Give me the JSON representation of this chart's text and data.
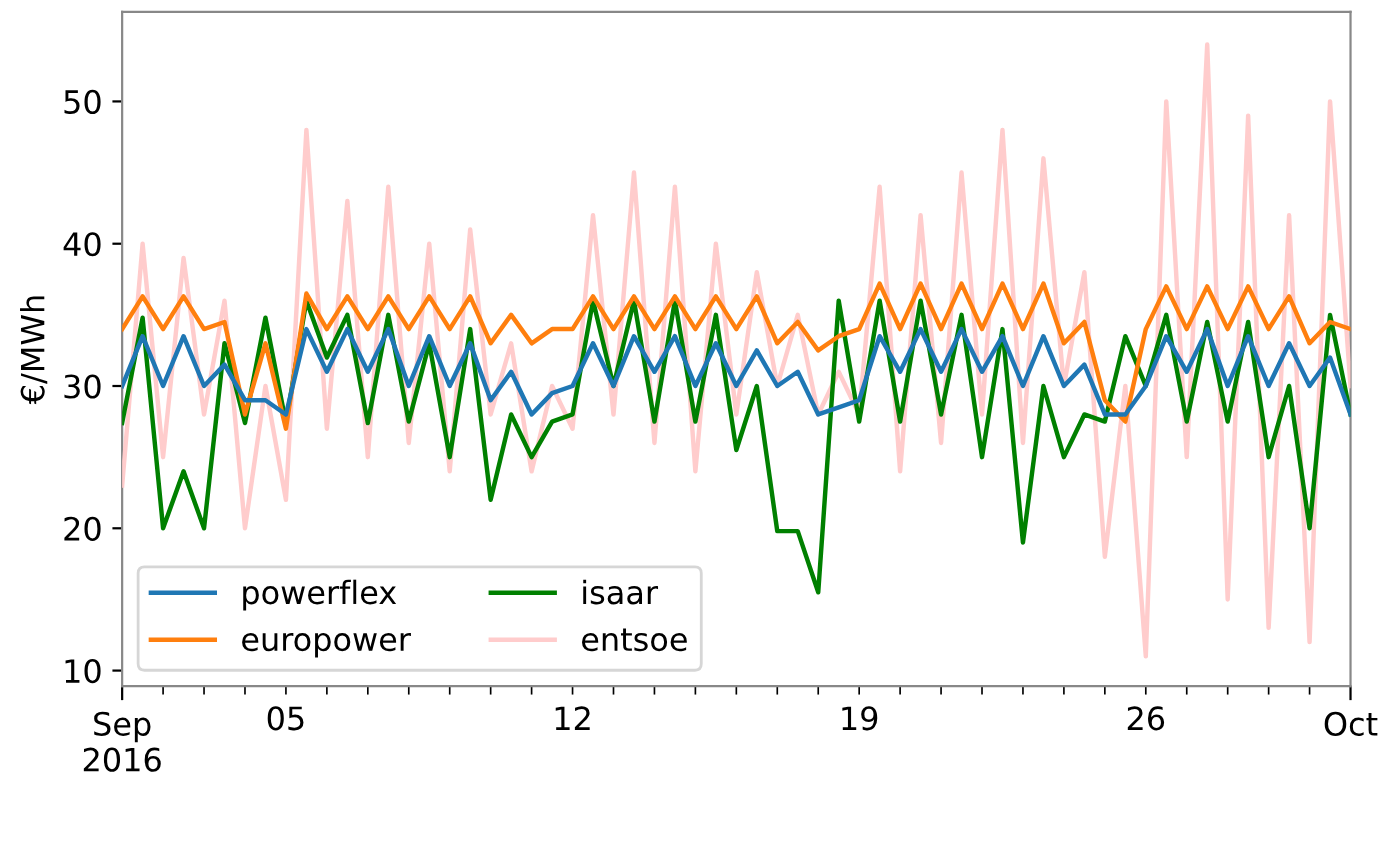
{
  "chart_data": {
    "type": "line",
    "ylabel": "€/MWh",
    "x": [
      "2016-09-01T00:00",
      "2016-09-01T12:00",
      "2016-09-02T00:00",
      "2016-09-02T12:00",
      "2016-09-03T00:00",
      "2016-09-03T12:00",
      "2016-09-04T00:00",
      "2016-09-04T12:00",
      "2016-09-05T00:00",
      "2016-09-05T12:00",
      "2016-09-06T00:00",
      "2016-09-06T12:00",
      "2016-09-07T00:00",
      "2016-09-07T12:00",
      "2016-09-08T00:00",
      "2016-09-08T12:00",
      "2016-09-09T00:00",
      "2016-09-09T12:00",
      "2016-09-10T00:00",
      "2016-09-10T12:00",
      "2016-09-11T00:00",
      "2016-09-11T12:00",
      "2016-09-12T00:00",
      "2016-09-12T12:00",
      "2016-09-13T00:00",
      "2016-09-13T12:00",
      "2016-09-14T00:00",
      "2016-09-14T12:00",
      "2016-09-15T00:00",
      "2016-09-15T12:00",
      "2016-09-16T00:00",
      "2016-09-16T12:00",
      "2016-09-17T00:00",
      "2016-09-17T12:00",
      "2016-09-18T00:00",
      "2016-09-18T12:00",
      "2016-09-19T00:00",
      "2016-09-19T12:00",
      "2016-09-20T00:00",
      "2016-09-20T12:00",
      "2016-09-21T00:00",
      "2016-09-21T12:00",
      "2016-09-22T00:00",
      "2016-09-22T12:00",
      "2016-09-23T00:00",
      "2016-09-23T12:00",
      "2016-09-24T00:00",
      "2016-09-24T12:00",
      "2016-09-25T00:00",
      "2016-09-25T12:00",
      "2016-09-26T00:00",
      "2016-09-26T12:00",
      "2016-09-27T00:00",
      "2016-09-27T12:00",
      "2016-09-28T00:00",
      "2016-09-28T12:00",
      "2016-09-29T00:00",
      "2016-09-29T12:00",
      "2016-09-30T00:00",
      "2016-09-30T12:00",
      "2016-10-01T00:00"
    ],
    "series": [
      {
        "name": "powerflex",
        "color": "#1f77b4",
        "values": [
          30,
          33.5,
          30,
          33.5,
          30,
          31.5,
          29,
          29,
          28,
          34,
          31,
          34,
          31,
          34,
          30,
          33.5,
          30,
          33,
          29,
          31,
          28,
          29.5,
          30,
          33,
          30,
          33.5,
          31,
          33.5,
          30,
          33,
          30,
          32.5,
          30,
          31,
          28,
          28.5,
          29,
          33.5,
          31,
          34,
          31,
          34,
          31,
          33.5,
          30,
          33.5,
          30,
          31.5,
          28,
          28,
          30,
          33.5,
          31,
          34,
          30,
          33.5,
          30,
          33,
          30,
          32,
          28
        ]
      },
      {
        "name": "europower",
        "color": "#ff7f0e",
        "values": [
          34,
          36.3,
          34,
          36.3,
          34,
          34.5,
          28,
          33,
          27,
          36.5,
          34,
          36.3,
          34,
          36.3,
          34,
          36.3,
          34,
          36.3,
          33,
          35,
          33,
          34,
          34,
          36.3,
          34,
          36.3,
          34,
          36.3,
          34,
          36.3,
          34,
          36.3,
          33,
          34.5,
          32.5,
          33.5,
          34,
          37.2,
          34,
          37.2,
          34,
          37.2,
          34,
          37.2,
          34,
          37.2,
          33,
          34.5,
          29,
          27.5,
          34,
          37,
          34,
          37,
          34,
          37,
          34,
          36.3,
          33,
          34.5,
          34
        ]
      },
      {
        "name": "isaar",
        "color": "#008000",
        "values": [
          27.4,
          34.8,
          20,
          24,
          20,
          33,
          27.4,
          34.8,
          27.4,
          36,
          32,
          35,
          27.4,
          35,
          27.5,
          33,
          25,
          34,
          22,
          28,
          25,
          27.5,
          28,
          36,
          30,
          36,
          27.5,
          36,
          27.5,
          35,
          25.5,
          30,
          19.8,
          19.8,
          15.5,
          36,
          27.5,
          36,
          27.5,
          36,
          28,
          35,
          25,
          34,
          19,
          30,
          25,
          28,
          27.5,
          33.5,
          30,
          35,
          27.5,
          34.5,
          27.5,
          34.5,
          25,
          30,
          20,
          35,
          28
        ]
      },
      {
        "name": "entsoe",
        "color": "#ffcccc",
        "values": [
          23,
          40,
          25,
          39,
          28,
          36,
          20,
          30,
          22,
          48,
          27,
          43,
          25,
          44,
          26,
          40,
          24,
          41,
          28,
          33,
          24,
          30,
          27,
          42,
          28,
          45,
          26,
          44,
          24,
          40,
          28,
          38,
          30,
          35,
          28,
          31,
          28,
          44,
          24,
          42,
          26,
          45,
          28,
          48,
          26,
          46,
          30,
          38,
          18,
          30,
          11,
          50,
          25,
          54,
          15,
          49,
          13,
          42,
          12,
          50,
          30
        ]
      }
    ],
    "xlim": [
      "2016-09-01T00:00",
      "2016-10-01T00:00"
    ],
    "xticks": [
      {
        "value": "2016-09-01",
        "label": "Sep\n2016"
      },
      {
        "value": "2016-10-01",
        "label": "Oct"
      },
      {
        "value": "2016-09-02",
        "label": null
      },
      {
        "value": "2016-09-03",
        "label": null
      },
      {
        "value": "2016-09-04",
        "label": null
      },
      {
        "value": "2016-09-05",
        "label": "05"
      },
      {
        "value": "2016-09-06",
        "label": null
      },
      {
        "value": "2016-09-07",
        "label": null
      },
      {
        "value": "2016-09-08",
        "label": null
      },
      {
        "value": "2016-09-09",
        "label": null
      },
      {
        "value": "2016-09-10",
        "label": null
      },
      {
        "value": "2016-09-11",
        "label": null
      },
      {
        "value": "2016-09-12",
        "label": "12"
      },
      {
        "value": "2016-09-13",
        "label": null
      },
      {
        "value": "2016-09-14",
        "label": null
      },
      {
        "value": "2016-09-15",
        "label": null
      },
      {
        "value": "2016-09-16",
        "label": null
      },
      {
        "value": "2016-09-17",
        "label": null
      },
      {
        "value": "2016-09-18",
        "label": null
      },
      {
        "value": "2016-09-19",
        "label": "19"
      },
      {
        "value": "2016-09-20",
        "label": null
      },
      {
        "value": "2016-09-21",
        "label": null
      },
      {
        "value": "2016-09-22",
        "label": null
      },
      {
        "value": "2016-09-23",
        "label": null
      },
      {
        "value": "2016-09-24",
        "label": null
      },
      {
        "value": "2016-09-25",
        "label": null
      },
      {
        "value": "2016-09-26",
        "label": "26"
      },
      {
        "value": "2016-09-27",
        "label": null
      },
      {
        "value": "2016-09-28",
        "label": null
      },
      {
        "value": "2016-09-29",
        "label": null
      },
      {
        "value": "2016-09-30",
        "label": null
      }
    ],
    "ylim": [
      8.9,
      56.3
    ],
    "yticks": [
      10,
      20,
      30,
      40,
      50
    ],
    "grid": false,
    "legend": "bottom left",
    "marker": "none",
    "line_style": "solid"
  }
}
